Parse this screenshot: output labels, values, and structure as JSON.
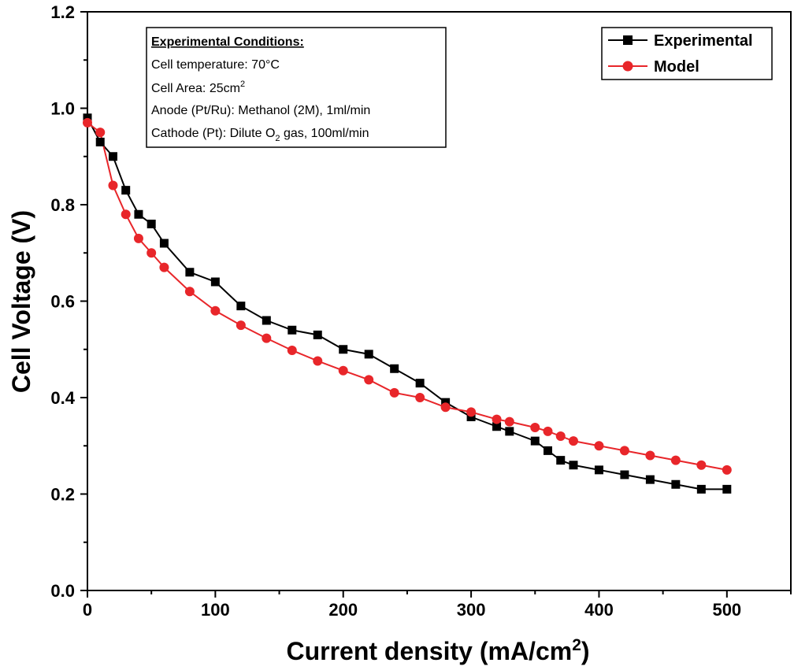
{
  "chart_data": {
    "type": "line",
    "xlabel": "Current density (mA/cm",
    "xlabel_sup": "2",
    "xlabel_end": ")",
    "ylabel": "Cell Voltage (V)",
    "xlim": [
      0,
      550
    ],
    "ylim": [
      0,
      1.2
    ],
    "xticks": [
      0,
      100,
      200,
      300,
      400,
      500
    ],
    "yticks": [
      0.0,
      0.2,
      0.4,
      0.6,
      0.8,
      1.0,
      1.2
    ],
    "ytick_labels": [
      "0.0",
      "0.2",
      "0.4",
      "0.6",
      "0.8",
      "1.0",
      "1.2"
    ],
    "grid": false,
    "legend_position": "top-right",
    "series": [
      {
        "name": "Experimental",
        "color": "#000000",
        "marker": "square",
        "x": [
          0,
          10,
          20,
          30,
          40,
          50,
          60,
          80,
          100,
          120,
          140,
          160,
          180,
          200,
          220,
          240,
          260,
          280,
          300,
          320,
          330,
          350,
          360,
          370,
          380,
          400,
          420,
          440,
          460,
          480,
          500
        ],
        "y": [
          0.98,
          0.93,
          0.9,
          0.83,
          0.78,
          0.76,
          0.72,
          0.66,
          0.64,
          0.59,
          0.56,
          0.54,
          0.53,
          0.5,
          0.49,
          0.46,
          0.43,
          0.39,
          0.36,
          0.34,
          0.33,
          0.31,
          0.29,
          0.27,
          0.26,
          0.25,
          0.24,
          0.23,
          0.22,
          0.21,
          0.21
        ]
      },
      {
        "name": "Model",
        "color": "#e8262a",
        "marker": "circle",
        "x": [
          0,
          10,
          20,
          30,
          40,
          50,
          60,
          80,
          100,
          120,
          140,
          160,
          180,
          200,
          220,
          240,
          260,
          280,
          300,
          320,
          330,
          350,
          360,
          370,
          380,
          400,
          420,
          440,
          460,
          480,
          500
        ],
        "y": [
          0.97,
          0.95,
          0.84,
          0.78,
          0.73,
          0.7,
          0.67,
          0.62,
          0.58,
          0.55,
          0.523,
          0.498,
          0.476,
          0.456,
          0.437,
          0.41,
          0.4,
          0.38,
          0.37,
          0.355,
          0.35,
          0.338,
          0.33,
          0.32,
          0.31,
          0.3,
          0.29,
          0.28,
          0.27,
          0.26,
          0.25
        ]
      }
    ],
    "annotation": {
      "title": "Experimental Conditions:",
      "lines": [
        {
          "text": "Cell temperature: 70°C"
        },
        {
          "text": "Cell Area: 25cm",
          "sup": "2"
        },
        {
          "text": "Anode (Pt/Ru): Methanol (2M), 1ml/min"
        },
        {
          "text": "Cathode (Pt): Dilute O",
          "sub": "2",
          "rest": " gas, 100ml/min"
        }
      ]
    }
  }
}
